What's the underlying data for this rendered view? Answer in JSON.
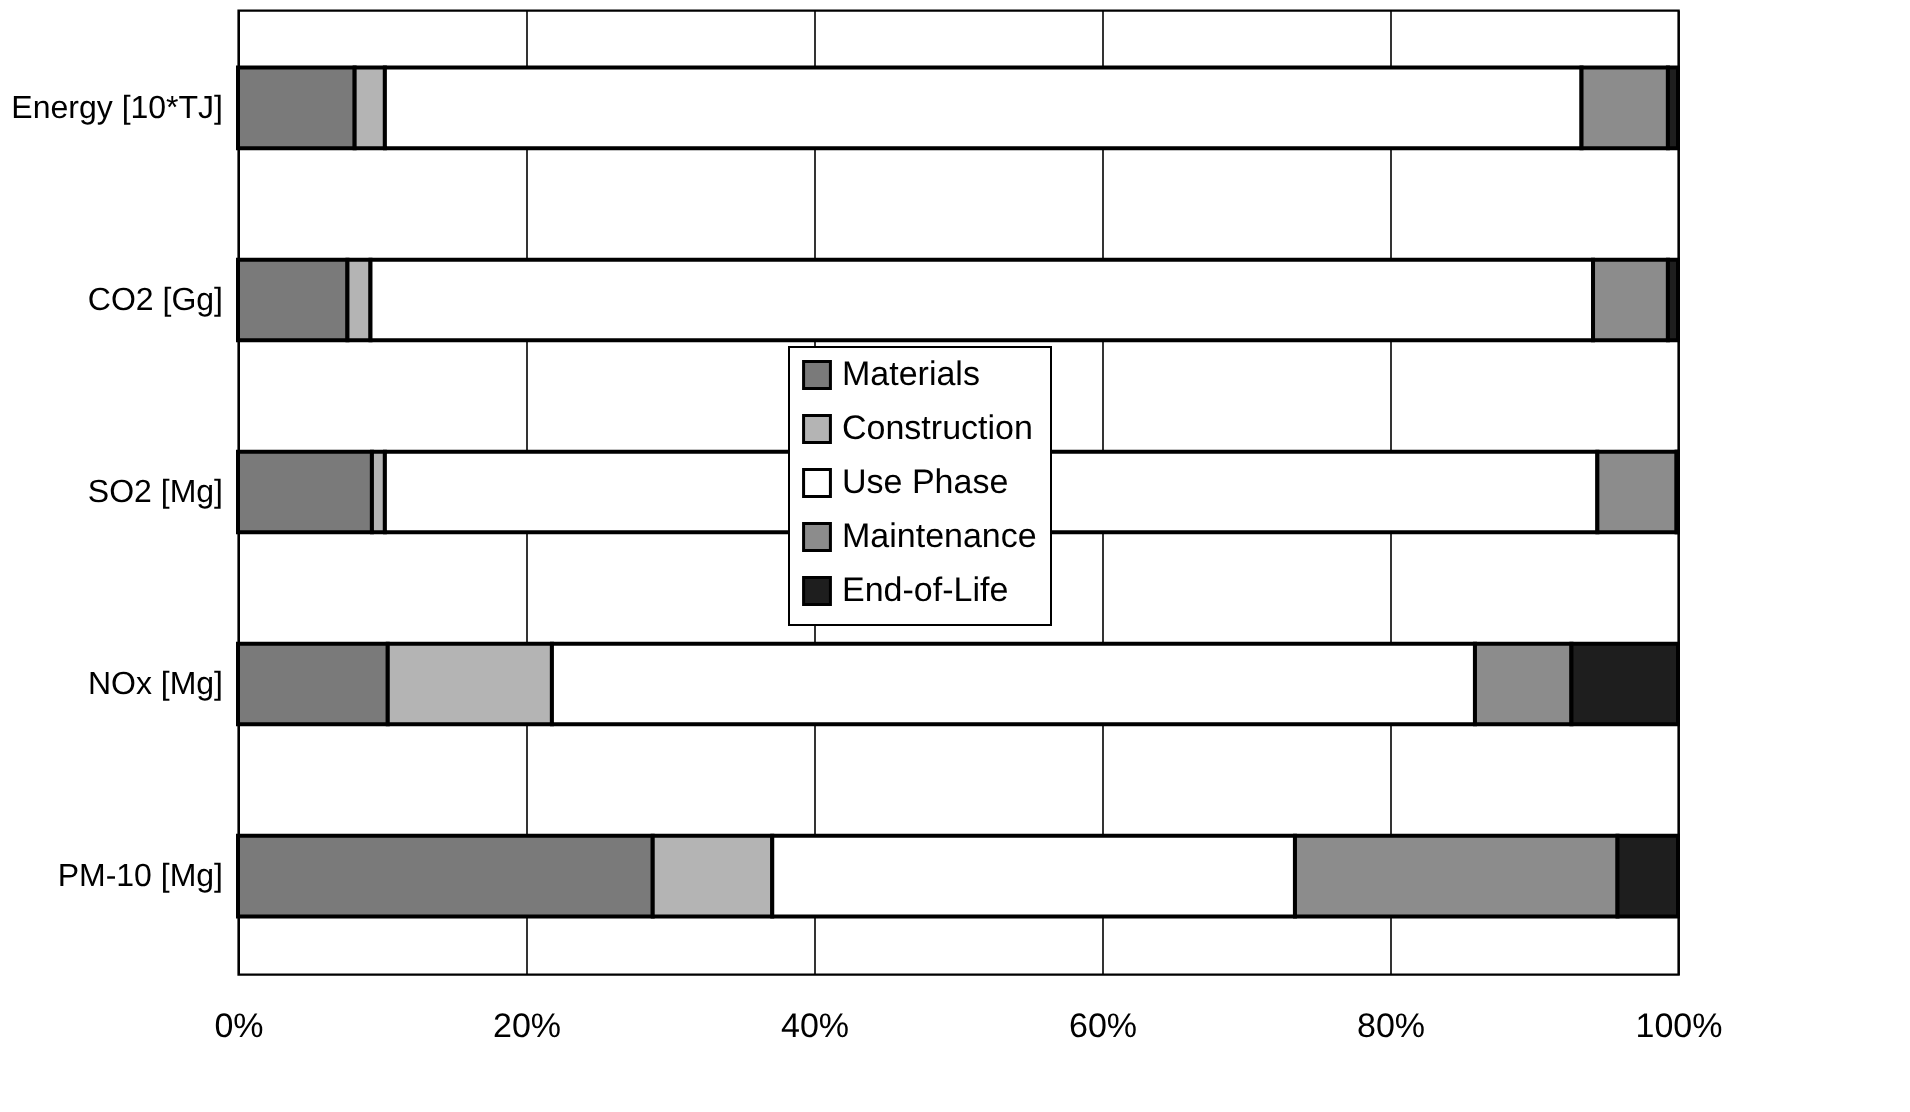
{
  "chart_data": {
    "type": "bar",
    "orientation": "horizontal",
    "stacked": true,
    "categories": [
      "Energy [10*TJ]",
      "CO2 [Gg]",
      "SO2 [Mg]",
      "NOx [Mg]",
      "PM-10 [Mg]"
    ],
    "series": [
      {
        "name": "Materials",
        "color": "#7a7a7a",
        "values": [
          8.1,
          7.6,
          9.3,
          10.4,
          28.8
        ]
      },
      {
        "name": "Construction",
        "color": "#b4b4b4",
        "values": [
          2.1,
          1.6,
          0.9,
          11.4,
          8.3
        ]
      },
      {
        "name": "Use Phase",
        "color": "#ffffff",
        "values": [
          83.1,
          84.9,
          84.2,
          64.1,
          36.3
        ]
      },
      {
        "name": "Maintenance",
        "color": "#8c8c8c",
        "values": [
          6.0,
          5.2,
          5.5,
          6.7,
          22.4
        ]
      },
      {
        "name": "End-of-Life",
        "color": "#1e1e1e",
        "values": [
          0.7,
          0.7,
          0.1,
          7.4,
          4.2
        ]
      }
    ],
    "xlim": [
      0,
      100
    ],
    "xticks": [
      {
        "value": 0,
        "label": "0%"
      },
      {
        "value": 20,
        "label": "20%"
      },
      {
        "value": 40,
        "label": "40%"
      },
      {
        "value": 60,
        "label": "60%"
      },
      {
        "value": 80,
        "label": "80%"
      },
      {
        "value": 100,
        "label": "100%"
      }
    ],
    "grid": "x",
    "legend": "center"
  }
}
